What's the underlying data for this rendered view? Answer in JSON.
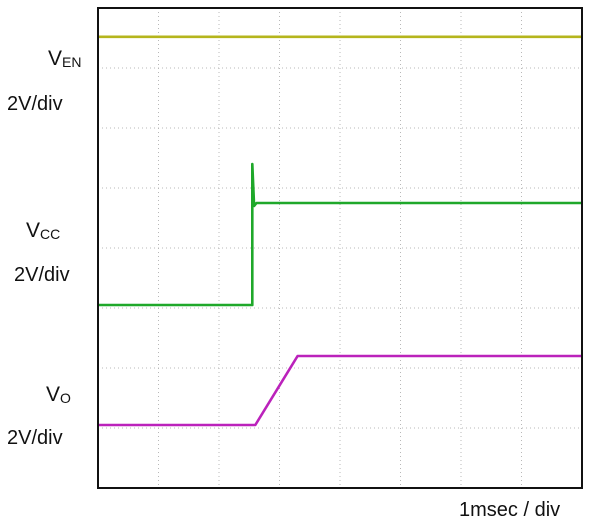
{
  "chart_data": {
    "type": "line",
    "x_divisions": 8,
    "y_divisions": 8,
    "grid": true,
    "time_per_div_label": "1msec / div",
    "series": [
      {
        "name": "EN",
        "color": "#b5b51c",
        "label_main": "V",
        "label_sub": "EN",
        "scale_label": "2V/div",
        "points": [
          [
            0,
            7.52
          ],
          [
            8,
            7.52
          ]
        ]
      },
      {
        "name": "CC",
        "color": "#1fa82a",
        "label_main": "V",
        "label_sub": "CC",
        "scale_label": "2V/div",
        "points": [
          [
            0,
            3.05
          ],
          [
            2.55,
            3.05
          ],
          [
            2.55,
            5.4
          ],
          [
            2.58,
            4.7
          ],
          [
            2.62,
            4.75
          ],
          [
            8,
            4.75
          ]
        ]
      },
      {
        "name": "O",
        "color": "#bb22bb",
        "label_main": "V",
        "label_sub": "O",
        "scale_label": "2V/div",
        "points": [
          [
            0,
            1.05
          ],
          [
            2.6,
            1.05
          ],
          [
            3.3,
            2.2
          ],
          [
            8,
            2.2
          ]
        ]
      }
    ]
  }
}
